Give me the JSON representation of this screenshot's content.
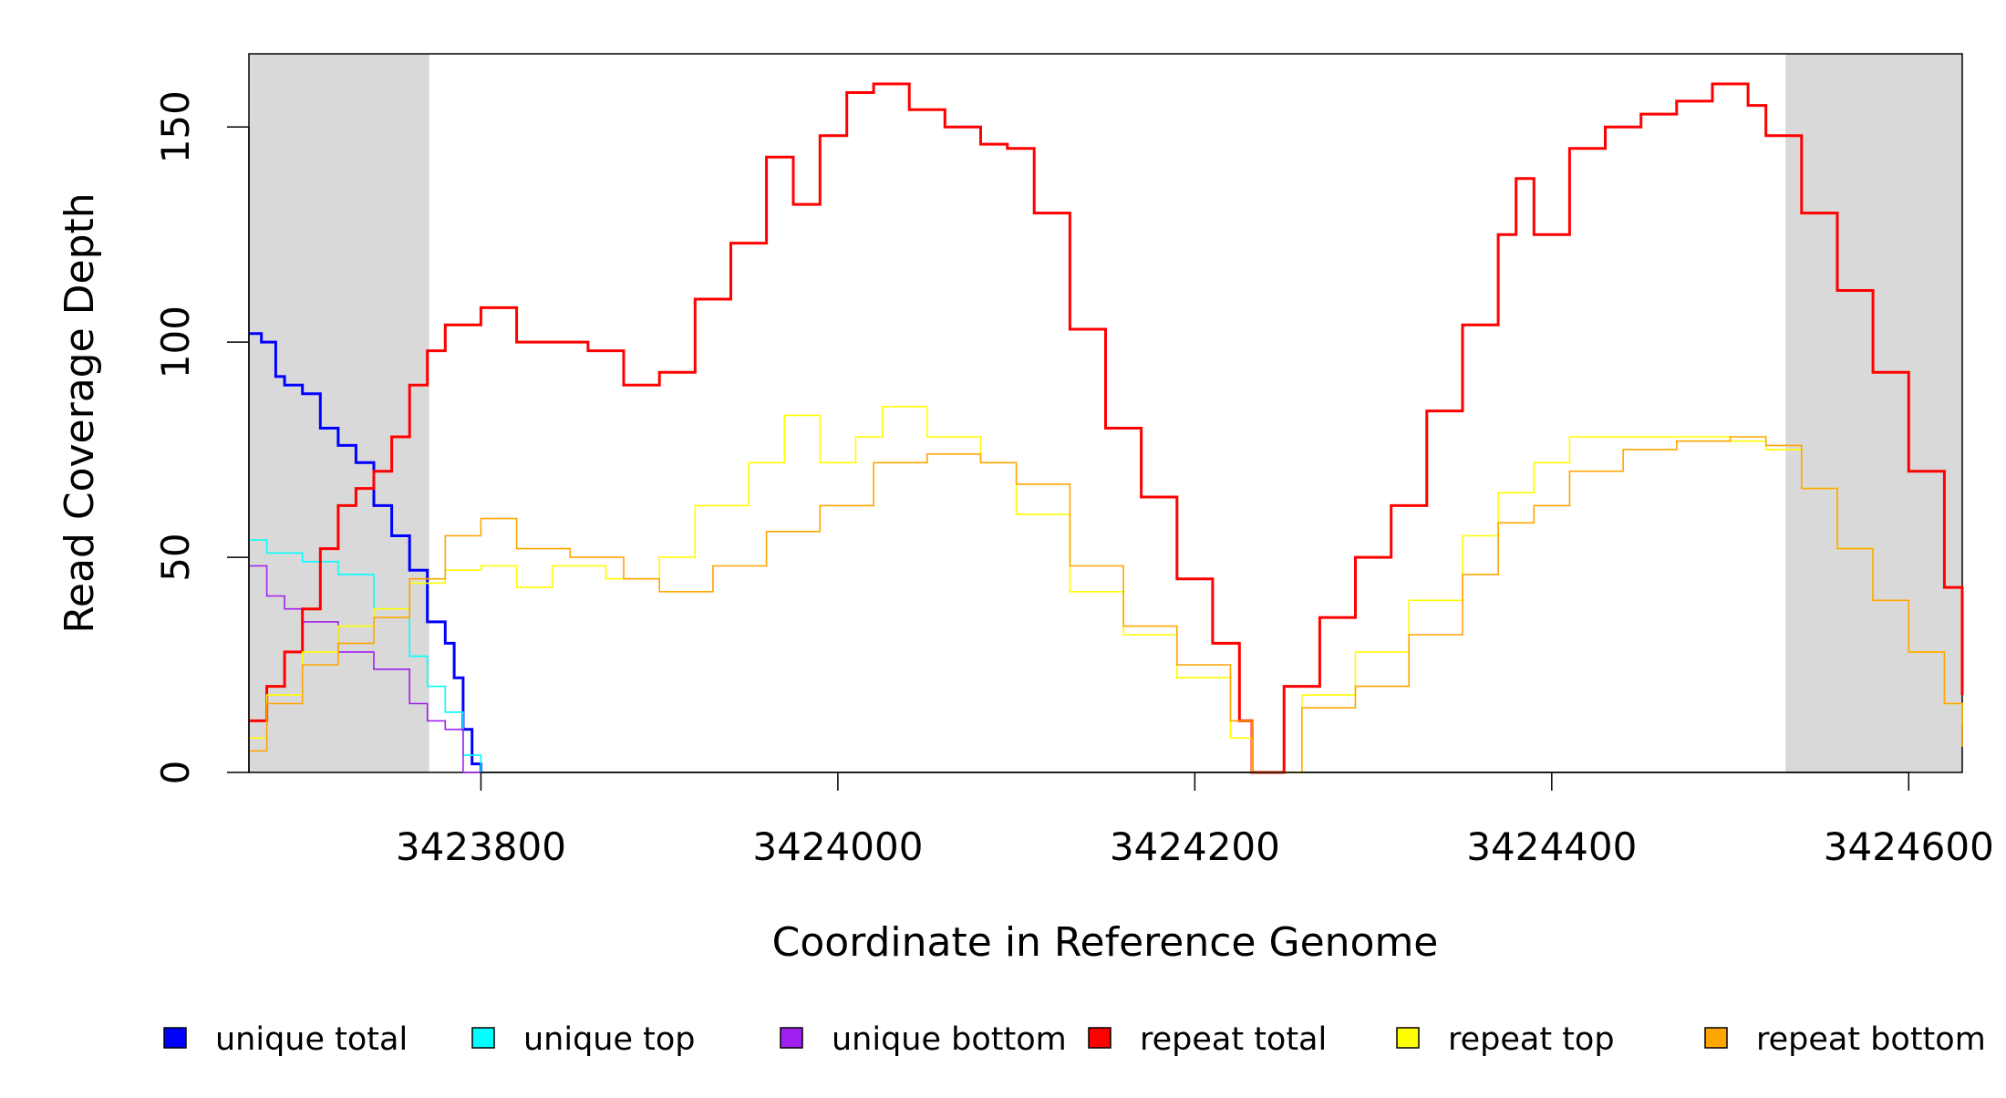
{
  "chart_data": {
    "type": "line",
    "title": "",
    "xlabel": "Coordinate in Reference Genome",
    "ylabel": "Read Coverage Depth",
    "xlim": [
      3423670,
      3424630
    ],
    "ylim": [
      0,
      167
    ],
    "x_ticks": [
      3423800,
      3424000,
      3424200,
      3424400,
      3424600
    ],
    "x_tick_labels": [
      "3423800",
      "3424000",
      "3424200",
      "3424400",
      "3424600"
    ],
    "y_ticks": [
      0,
      50,
      100,
      150
    ],
    "y_tick_labels": [
      "0",
      "50",
      "100",
      "150"
    ],
    "shaded_regions": [
      [
        3423670,
        3423771
      ],
      [
        3424531,
        3424630
      ]
    ],
    "shade_color": "#d9d9d9",
    "grid": false,
    "legend_position": "bottom",
    "series": [
      {
        "name": "unique total",
        "color": "#0000ff",
        "x": [
          3423670,
          3423677,
          3423685,
          3423690,
          3423700,
          3423710,
          3423720,
          3423730,
          3423740,
          3423750,
          3423760,
          3423770,
          3423780,
          3423785,
          3423790,
          3423795,
          3423800
        ],
        "y": [
          102,
          100,
          92,
          90,
          88,
          80,
          76,
          72,
          62,
          55,
          47,
          35,
          30,
          22,
          10,
          2,
          0
        ]
      },
      {
        "name": "unique top",
        "color": "#00ffff",
        "x": [
          3423670,
          3423680,
          3423700,
          3423720,
          3423740,
          3423760,
          3423770,
          3423780,
          3423790,
          3423800
        ],
        "y": [
          54,
          51,
          49,
          46,
          38,
          27,
          20,
          14,
          4,
          0
        ]
      },
      {
        "name": "unique bottom",
        "color": "#a020f0",
        "x": [
          3423670,
          3423680,
          3423690,
          3423700,
          3423720,
          3423740,
          3423760,
          3423770,
          3423780,
          3423790,
          3423800
        ],
        "y": [
          48,
          41,
          38,
          35,
          28,
          24,
          16,
          12,
          10,
          0,
          0
        ]
      },
      {
        "name": "repeat total",
        "color": "#ff0000",
        "x": [
          3423670,
          3423680,
          3423690,
          3423700,
          3423710,
          3423720,
          3423730,
          3423740,
          3423750,
          3423760,
          3423770,
          3423780,
          3423800,
          3423820,
          3423840,
          3423860,
          3423880,
          3423900,
          3423920,
          3423940,
          3423960,
          3423975,
          3423990,
          3424005,
          3424020,
          3424040,
          3424060,
          3424080,
          3424095,
          3424110,
          3424130,
          3424150,
          3424170,
          3424190,
          3424210,
          3424225,
          3424232,
          3424240,
          3424250,
          3424270,
          3424290,
          3424310,
          3424330,
          3424350,
          3424370,
          3424380,
          3424390,
          3424410,
          3424430,
          3424450,
          3424470,
          3424490,
          3424510,
          3424520,
          3424540,
          3424560,
          3424580,
          3424600,
          3424620,
          3424630
        ],
        "y": [
          12,
          20,
          28,
          38,
          52,
          62,
          66,
          70,
          78,
          90,
          98,
          104,
          108,
          100,
          100,
          98,
          90,
          93,
          110,
          123,
          143,
          132,
          148,
          158,
          160,
          154,
          150,
          146,
          145,
          130,
          103,
          80,
          64,
          45,
          30,
          12,
          0,
          0,
          20,
          36,
          50,
          62,
          84,
          104,
          125,
          138,
          125,
          145,
          150,
          153,
          156,
          160,
          155,
          148,
          130,
          112,
          93,
          70,
          43,
          18
        ]
      },
      {
        "name": "repeat top",
        "color": "#ffff00",
        "x": [
          3423670,
          3423680,
          3423700,
          3423720,
          3423740,
          3423760,
          3423780,
          3423800,
          3423820,
          3423840,
          3423870,
          3423900,
          3423920,
          3423950,
          3423970,
          3423990,
          3424010,
          3424025,
          3424050,
          3424080,
          3424100,
          3424130,
          3424160,
          3424190,
          3424220,
          3424232,
          3424240,
          3424260,
          3424290,
          3424320,
          3424350,
          3424370,
          3424390,
          3424410,
          3424440,
          3424470,
          3424500,
          3424520,
          3424540,
          3424560,
          3424580,
          3424600,
          3424620,
          3424630
        ],
        "y": [
          8,
          18,
          28,
          34,
          38,
          44,
          47,
          48,
          43,
          48,
          45,
          50,
          62,
          72,
          83,
          72,
          78,
          85,
          78,
          72,
          60,
          42,
          32,
          22,
          8,
          0,
          0,
          18,
          28,
          40,
          55,
          65,
          72,
          78,
          78,
          78,
          77,
          75,
          66,
          52,
          40,
          28,
          16,
          11
        ]
      },
      {
        "name": "repeat bottom",
        "color": "#ffa500",
        "x": [
          3423670,
          3423680,
          3423700,
          3423720,
          3423740,
          3423760,
          3423780,
          3423800,
          3423820,
          3423850,
          3423880,
          3423900,
          3423930,
          3423960,
          3423990,
          3424020,
          3424050,
          3424080,
          3424100,
          3424130,
          3424160,
          3424190,
          3424220,
          3424232,
          3424240,
          3424260,
          3424290,
          3424320,
          3424350,
          3424370,
          3424390,
          3424410,
          3424440,
          3424470,
          3424500,
          3424520,
          3424540,
          3424560,
          3424580,
          3424600,
          3424620,
          3424630
        ],
        "y": [
          5,
          16,
          25,
          30,
          36,
          45,
          55,
          59,
          52,
          50,
          45,
          42,
          48,
          56,
          62,
          72,
          74,
          72,
          67,
          48,
          34,
          25,
          12,
          0,
          0,
          15,
          20,
          32,
          46,
          58,
          62,
          70,
          75,
          77,
          78,
          76,
          66,
          52,
          40,
          28,
          16,
          6
        ]
      }
    ],
    "legend": [
      {
        "label": "unique total",
        "color": "#0000ff"
      },
      {
        "label": "unique top",
        "color": "#00ffff"
      },
      {
        "label": "unique bottom",
        "color": "#a020f0"
      },
      {
        "label": "repeat total",
        "color": "#ff0000"
      },
      {
        "label": "repeat top",
        "color": "#ffff00"
      },
      {
        "label": "repeat bottom",
        "color": "#ffa500"
      }
    ]
  }
}
